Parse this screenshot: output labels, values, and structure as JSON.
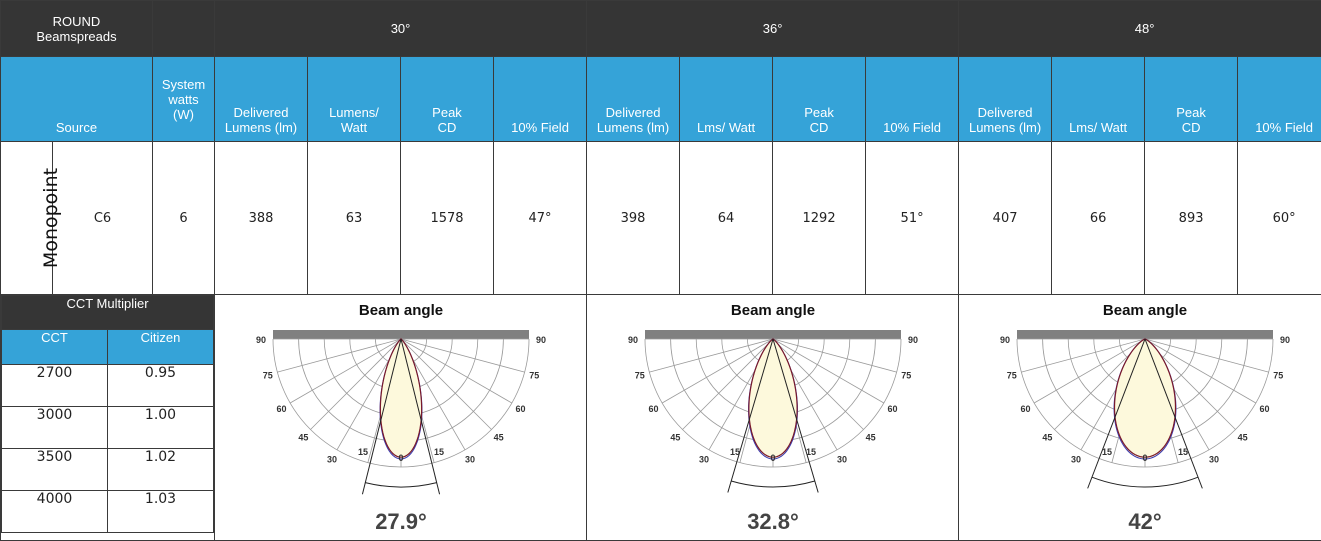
{
  "header": {
    "title": "ROUND\nBeamspreads",
    "beams": [
      "30°",
      "36°",
      "48°"
    ]
  },
  "subheader": {
    "source": "Source",
    "system_watts": "System\nwatts\n(W)",
    "groups": [
      [
        "Delivered\nLumens (lm)",
        "Lumens/\nWatt",
        "Peak\nCD",
        "10% Field"
      ],
      [
        "Delivered\nLumens (lm)",
        "Lms/ Watt",
        "Peak\nCD",
        "10% Field"
      ],
      [
        "Delivered\nLumens (lm)",
        "Lms/ Watt",
        "Peak\nCD",
        "10% Field"
      ]
    ]
  },
  "row": {
    "family": "Monopoint",
    "source": "C6",
    "system_watts": "6",
    "groups": [
      [
        "388",
        "63",
        "1578",
        "47°"
      ],
      [
        "398",
        "64",
        "1292",
        "51°"
      ],
      [
        "407",
        "66",
        "893",
        "60°"
      ]
    ]
  },
  "cct": {
    "title": "CCT Multiplier",
    "col_cct": "CCT",
    "col_citizen": "Citizen",
    "rows": [
      {
        "cct": "2700",
        "value": "0.95"
      },
      {
        "cct": "3000",
        "value": "1.00"
      },
      {
        "cct": "3500",
        "value": "1.02"
      },
      {
        "cct": "4000",
        "value": "1.03"
      }
    ]
  },
  "beam_charts": [
    {
      "title": "Beam angle",
      "angle_label": "27.9°",
      "beam_angle": 27.9
    },
    {
      "title": "Beam angle",
      "angle_label": "32.8°",
      "beam_angle": 32.8
    },
    {
      "title": "Beam angle",
      "angle_label": "42°",
      "beam_angle": 42
    }
  ],
  "polar_ticks": [
    "90",
    "75",
    "60",
    "45",
    "30",
    "15",
    "0"
  ],
  "colors": {
    "header_bg": "#353535",
    "subheader_bg": "#35a3d8",
    "beam_fill": "#fdf9dc",
    "beam_outline": "#7a1a2a",
    "beam_outline_alt": "#3a3ab0",
    "grid": "#9a9a9a",
    "top_bar": "#808080"
  }
}
